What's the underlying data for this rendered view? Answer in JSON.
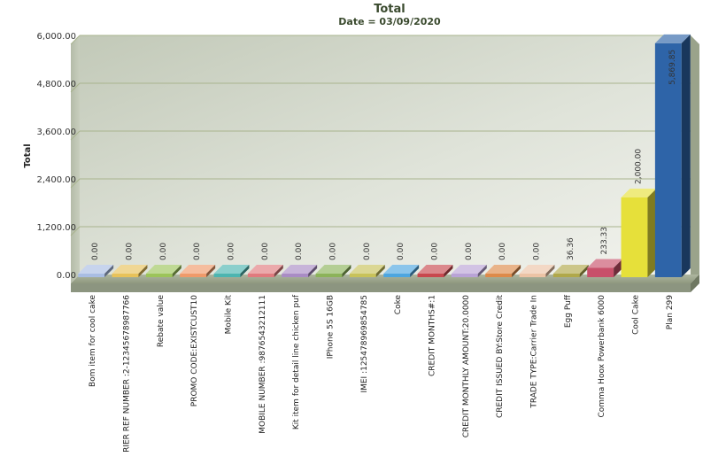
{
  "chart_data": {
    "type": "bar",
    "title": "Total",
    "subtitle": "Date = 03/09/2020",
    "ylabel": "Total",
    "xlabel": "",
    "ylim": [
      0,
      6000
    ],
    "yticks": [
      "0.00",
      "1,200.00",
      "2,400.00",
      "3,600.00",
      "4,800.00",
      "6,000.00"
    ],
    "ytick_values": [
      0,
      1200,
      2400,
      3600,
      4800,
      6000
    ],
    "grid": true,
    "categories": [
      "Bom item for cool cake",
      "RIER REF NUMBER :2-12345678987766",
      "Rebate value",
      "PROMO CODE:EXISTCUST10",
      "Mobile Kit",
      "MOBILE NUMBER :9876543212111",
      "Kit item for detail line chicken puf",
      "IPhone 5S 16GB",
      "IMEI :125478969854785",
      "Coke",
      "CREDIT MONTHS#:1",
      "CREDIT MONTHLY AMOUNT:20.0000",
      "CREDIT ISSUED BY:Store Credit",
      "TRADE TYPE:Carrier Trade In",
      "Egg Puff",
      "Comma Hoox Powerbank 6000",
      "Cool Cake",
      "Plan 299"
    ],
    "values": [
      0,
      0,
      0,
      0,
      0,
      0,
      0,
      0,
      0,
      0,
      0,
      0,
      0,
      0,
      36.36,
      233.33,
      2000.0,
      5869.85
    ],
    "data_labels": [
      "0.00",
      "0.00",
      "0.00",
      "0.00",
      "0.00",
      "0.00",
      "0.00",
      "0.00",
      "0.00",
      "0.00",
      "0.00",
      "0.00",
      "0.00",
      "0.00",
      "36.36",
      "233.33",
      "2,000.00",
      "5,869.85"
    ],
    "colors": [
      "#a9bde3",
      "#e8c25a",
      "#9cc45a",
      "#ef9a6a",
      "#4db5b0",
      "#e07a7e",
      "#a98cc4",
      "#8cb35a",
      "#c8c25a",
      "#4da6e0",
      "#c8484e",
      "#b9a3d6",
      "#dd8a4a",
      "#ecc3a5",
      "#b0a84a",
      "#c8506a",
      "#e6e03a",
      "#2e64a8"
    ]
  }
}
